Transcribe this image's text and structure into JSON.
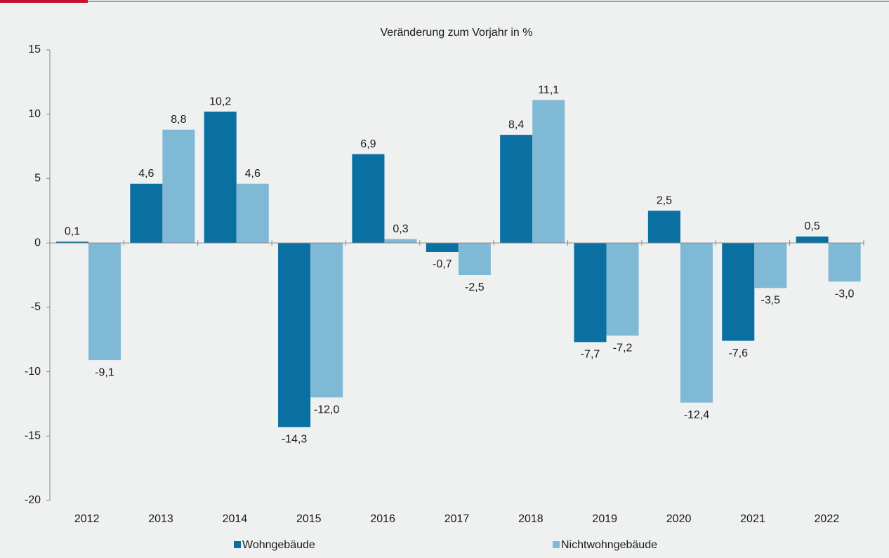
{
  "chart_data": {
    "type": "bar",
    "title": "Veränderung zum Vorjahr in %",
    "categories": [
      "2012",
      "2013",
      "2014",
      "2015",
      "2016",
      "2017",
      "2018",
      "2019",
      "2020",
      "2021",
      "2022"
    ],
    "series": [
      {
        "name": "Wohngebäude",
        "color": "#0a70a2",
        "values": [
          0.1,
          4.6,
          10.2,
          -14.3,
          6.9,
          -0.7,
          8.4,
          -7.7,
          2.5,
          -7.6,
          0.5
        ],
        "value_labels": [
          "0,1",
          "4,6",
          "10,2",
          "-14,3",
          "6,9",
          "-0,7",
          "8,4",
          "-7,7",
          "2,5",
          "-7,6",
          "0,5"
        ]
      },
      {
        "name": "Nichtwohngebäude",
        "color": "#80b9d6",
        "values": [
          -9.1,
          8.8,
          4.6,
          -12.0,
          0.3,
          -2.5,
          11.1,
          -7.2,
          -12.4,
          -3.5,
          -3.0
        ],
        "value_labels": [
          "-9,1",
          "8,8",
          "4,6",
          "-12,0",
          "0,3",
          "-2,5",
          "11,1",
          "-7,2",
          "-12,4",
          "-3,5",
          "-3,0"
        ]
      }
    ],
    "ylim": [
      -20,
      15
    ],
    "yticks": [
      -20,
      -15,
      -10,
      -5,
      0,
      5,
      10,
      15
    ],
    "grid": false
  }
}
